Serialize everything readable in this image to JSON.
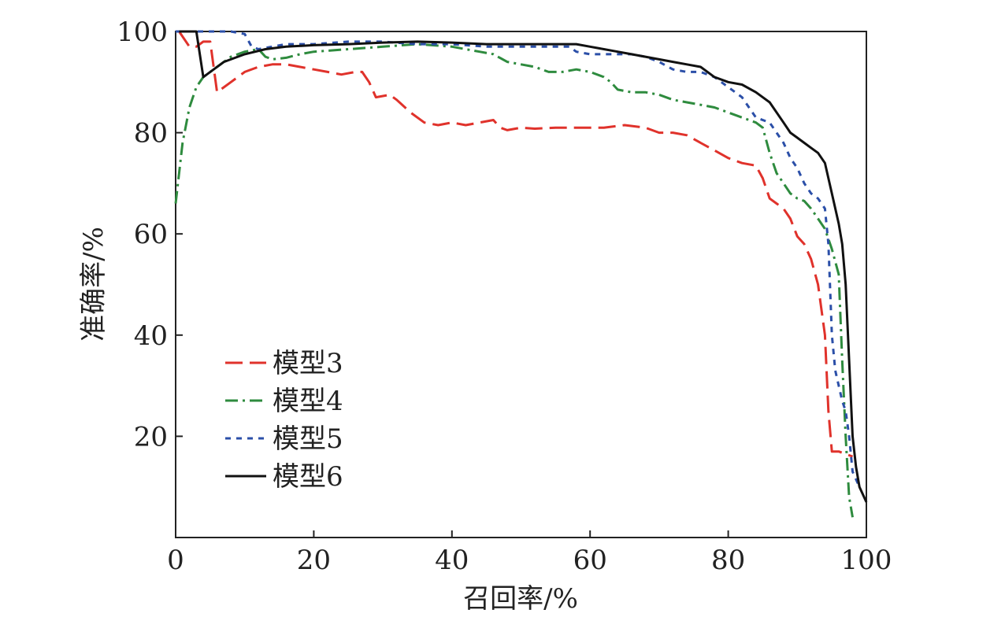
{
  "chart_data": {
    "type": "line",
    "title": "",
    "xlabel": "召回率/%",
    "ylabel": "准确率/%",
    "xlim": [
      0,
      100
    ],
    "ylim": [
      0,
      100
    ],
    "xticks": [
      "0",
      "20",
      "40",
      "60",
      "80",
      "100"
    ],
    "yticks": [
      "20",
      "40",
      "60",
      "80",
      "100"
    ],
    "legend_position": "lower-left",
    "grid": false,
    "series": [
      {
        "name": "模型3",
        "color": "#e0322b",
        "dash": "long-dash",
        "points": [
          [
            0.5,
            100
          ],
          [
            2,
            97
          ],
          [
            3,
            97
          ],
          [
            4,
            98
          ],
          [
            5,
            98
          ],
          [
            6,
            88
          ],
          [
            8,
            90
          ],
          [
            10,
            92
          ],
          [
            12,
            93
          ],
          [
            14,
            93.5
          ],
          [
            16,
            93.5
          ],
          [
            18,
            93
          ],
          [
            20,
            92.5
          ],
          [
            22,
            92
          ],
          [
            24,
            91.5
          ],
          [
            26,
            92
          ],
          [
            27,
            92
          ],
          [
            28,
            90
          ],
          [
            29,
            87
          ],
          [
            31,
            87.5
          ],
          [
            32,
            86.5
          ],
          [
            34,
            84
          ],
          [
            36,
            82
          ],
          [
            38,
            81.5
          ],
          [
            40,
            82
          ],
          [
            42,
            81.5
          ],
          [
            44,
            82
          ],
          [
            46,
            82.5
          ],
          [
            47,
            81
          ],
          [
            48,
            80.5
          ],
          [
            50,
            81
          ],
          [
            52,
            80.8
          ],
          [
            55,
            81
          ],
          [
            58,
            81
          ],
          [
            62,
            81
          ],
          [
            65,
            81.5
          ],
          [
            68,
            81
          ],
          [
            70,
            80
          ],
          [
            72,
            80
          ],
          [
            74,
            79.5
          ],
          [
            76,
            78
          ],
          [
            78,
            76.5
          ],
          [
            80,
            75
          ],
          [
            82,
            74
          ],
          [
            84,
            73.5
          ],
          [
            85,
            71
          ],
          [
            86,
            67
          ],
          [
            87,
            66
          ],
          [
            88,
            65
          ],
          [
            89,
            63
          ],
          [
            90,
            59.5
          ],
          [
            91,
            58
          ],
          [
            92,
            55
          ],
          [
            93,
            50
          ],
          [
            94,
            40
          ],
          [
            94.5,
            25
          ],
          [
            95,
            17
          ],
          [
            96,
            17
          ],
          [
            97,
            16.5
          ],
          [
            98,
            16
          ]
        ]
      },
      {
        "name": "模型4",
        "color": "#2e8b3e",
        "dash": "dash-dot",
        "points": [
          [
            0,
            66
          ],
          [
            1,
            78
          ],
          [
            2,
            85
          ],
          [
            3,
            89
          ],
          [
            4,
            91
          ],
          [
            6,
            93
          ],
          [
            8,
            95
          ],
          [
            10,
            96
          ],
          [
            12,
            96.5
          ],
          [
            13,
            95
          ],
          [
            14,
            94.5
          ],
          [
            16,
            94.8
          ],
          [
            18,
            95.5
          ],
          [
            20,
            96
          ],
          [
            25,
            96.5
          ],
          [
            30,
            97
          ],
          [
            35,
            97.5
          ],
          [
            40,
            97
          ],
          [
            42,
            96.5
          ],
          [
            44,
            96
          ],
          [
            46,
            95.5
          ],
          [
            48,
            94
          ],
          [
            50,
            93.5
          ],
          [
            52,
            93
          ],
          [
            54,
            92
          ],
          [
            56,
            92
          ],
          [
            58,
            92.5
          ],
          [
            60,
            92
          ],
          [
            62,
            91
          ],
          [
            63,
            90
          ],
          [
            64,
            88.5
          ],
          [
            66,
            88
          ],
          [
            68,
            88
          ],
          [
            70,
            87.5
          ],
          [
            72,
            86.5
          ],
          [
            74,
            86
          ],
          [
            76,
            85.5
          ],
          [
            78,
            85
          ],
          [
            80,
            84
          ],
          [
            82,
            83
          ],
          [
            84,
            82
          ],
          [
            85,
            81
          ],
          [
            86,
            76
          ],
          [
            87,
            72
          ],
          [
            88,
            70
          ],
          [
            89,
            68
          ],
          [
            90,
            67
          ],
          [
            91,
            66.5
          ],
          [
            92,
            65
          ],
          [
            93,
            63
          ],
          [
            94,
            61
          ],
          [
            95,
            57
          ],
          [
            96,
            52
          ],
          [
            96.5,
            35
          ],
          [
            97,
            20
          ],
          [
            97.5,
            8
          ],
          [
            98,
            4
          ]
        ]
      },
      {
        "name": "模型5",
        "color": "#2b4fa8",
        "dash": "short-dash",
        "points": [
          [
            0,
            100
          ],
          [
            2,
            100
          ],
          [
            5,
            100
          ],
          [
            8,
            100
          ],
          [
            10,
            99.5
          ],
          [
            11,
            97
          ],
          [
            12,
            96.5
          ],
          [
            14,
            97
          ],
          [
            16,
            97.5
          ],
          [
            20,
            97.5
          ],
          [
            25,
            98
          ],
          [
            30,
            98
          ],
          [
            35,
            97.5
          ],
          [
            40,
            97.5
          ],
          [
            45,
            97
          ],
          [
            50,
            97
          ],
          [
            55,
            97
          ],
          [
            57,
            97
          ],
          [
            58,
            96
          ],
          [
            60,
            95.5
          ],
          [
            62,
            95.5
          ],
          [
            64,
            95.5
          ],
          [
            66,
            95.5
          ],
          [
            68,
            95
          ],
          [
            70,
            94
          ],
          [
            72,
            92.5
          ],
          [
            74,
            92
          ],
          [
            76,
            92
          ],
          [
            78,
            91
          ],
          [
            80,
            89
          ],
          [
            82,
            87
          ],
          [
            84,
            83
          ],
          [
            86,
            82
          ],
          [
            87,
            80
          ],
          [
            88,
            78
          ],
          [
            89,
            75
          ],
          [
            90,
            73
          ],
          [
            91,
            70
          ],
          [
            92,
            68
          ],
          [
            93,
            67
          ],
          [
            94,
            65
          ],
          [
            94.5,
            58
          ],
          [
            95,
            40
          ],
          [
            95.5,
            33
          ],
          [
            96,
            30
          ],
          [
            96.5,
            27
          ],
          [
            97,
            25
          ],
          [
            97.5,
            20
          ],
          [
            98,
            13
          ],
          [
            99,
            10
          ]
        ]
      },
      {
        "name": "模型6",
        "color": "#111111",
        "dash": "solid",
        "points": [
          [
            0.5,
            100
          ],
          [
            3,
            100
          ],
          [
            4,
            91
          ],
          [
            5,
            92
          ],
          [
            7,
            94
          ],
          [
            10,
            95.5
          ],
          [
            13,
            96.5
          ],
          [
            16,
            97
          ],
          [
            20,
            97.3
          ],
          [
            25,
            97.5
          ],
          [
            30,
            97.8
          ],
          [
            35,
            98
          ],
          [
            40,
            97.8
          ],
          [
            45,
            97.5
          ],
          [
            50,
            97.5
          ],
          [
            55,
            97.5
          ],
          [
            58,
            97.5
          ],
          [
            60,
            97
          ],
          [
            62,
            96.5
          ],
          [
            64,
            96
          ],
          [
            66,
            95.5
          ],
          [
            68,
            95
          ],
          [
            70,
            94.5
          ],
          [
            72,
            94
          ],
          [
            74,
            93.5
          ],
          [
            76,
            93
          ],
          [
            78,
            91
          ],
          [
            80,
            90
          ],
          [
            82,
            89.5
          ],
          [
            84,
            88
          ],
          [
            86,
            86
          ],
          [
            88,
            82
          ],
          [
            89,
            80
          ],
          [
            90,
            79
          ],
          [
            91,
            78
          ],
          [
            92,
            77
          ],
          [
            93,
            76
          ],
          [
            94,
            74
          ],
          [
            95,
            68
          ],
          [
            96,
            62
          ],
          [
            96.5,
            58
          ],
          [
            97,
            50
          ],
          [
            97.5,
            35
          ],
          [
            98,
            20
          ],
          [
            98.5,
            14
          ],
          [
            99,
            10
          ],
          [
            100,
            7
          ]
        ]
      }
    ]
  }
}
